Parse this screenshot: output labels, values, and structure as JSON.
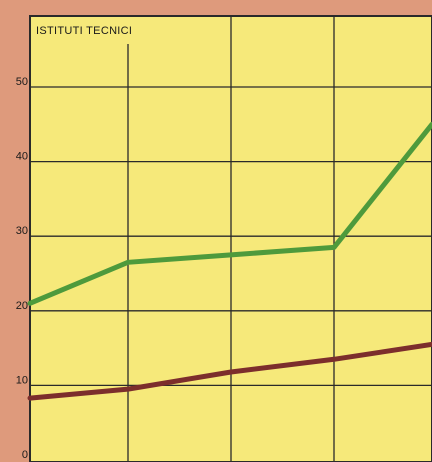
{
  "chart_data": {
    "type": "line",
    "title": "ISTITUTI TECNICI",
    "x": [
      0,
      1,
      2,
      3,
      4
    ],
    "ylim": [
      0,
      55
    ],
    "yticks": [
      "0",
      "10",
      "20",
      "30",
      "40",
      "50"
    ],
    "grid": true,
    "series": [
      {
        "color": "#4e9a3c",
        "values": [
          21,
          26.5,
          27.5,
          28.5,
          45
        ]
      },
      {
        "color": "#7c2e2c",
        "values": [
          8.3,
          9.5,
          11.8,
          13.5,
          15.5
        ]
      }
    ],
    "colors": {
      "plot_background": "#f6e97a",
      "page_background": "#de9a7c",
      "grid": "#2a2a2a"
    }
  }
}
